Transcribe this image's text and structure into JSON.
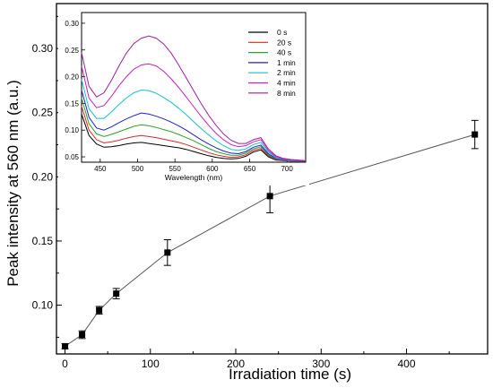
{
  "chart_data": [
    {
      "type": "scatter",
      "connected": true,
      "xlabel": "Irradiation time (s)",
      "ylabel": "Peak intensity at 560 nm (a.u.)",
      "xlim": [
        -10,
        495
      ],
      "ylim": [
        0.062,
        0.335
      ],
      "x_ticks": [
        0,
        100,
        200,
        300,
        400
      ],
      "y_ticks": [
        0.1,
        0.15,
        0.2,
        0.25,
        0.3
      ],
      "x_tick_labels": [
        "0",
        "100",
        "200",
        "300",
        "400"
      ],
      "y_tick_labels": [
        "0.10",
        "0.15",
        "0.20",
        "0.25",
        "0.30"
      ],
      "series": [
        {
          "x": [
            0,
            20,
            40,
            60,
            120,
            240,
            480
          ],
          "y": [
            0.068,
            0.077,
            0.096,
            0.109,
            0.141,
            0.185,
            0.233
          ],
          "error": [
            0.002,
            0.003,
            0.003,
            0.004,
            0.01,
            0.013,
            0.011
          ]
        }
      ],
      "marker": "square",
      "color": "#000000"
    },
    {
      "type": "line",
      "inset": true,
      "xlabel": "Wavelength (nm)",
      "xlim": [
        425,
        725
      ],
      "ylim": [
        0.04,
        0.32
      ],
      "x_ticks": [
        450,
        500,
        550,
        600,
        650,
        700
      ],
      "y_ticks": [
        0.05,
        0.1,
        0.15,
        0.2,
        0.25,
        0.3
      ],
      "x_tick_labels": [
        "450",
        "500",
        "550",
        "600",
        "650",
        "700"
      ],
      "y_tick_labels": [
        "0.05",
        "0.10",
        "0.15",
        "0.20",
        "0.25",
        "0.30"
      ],
      "legend_position": "top-right",
      "x": [
        425,
        435,
        445,
        455,
        465,
        475,
        485,
        495,
        505,
        515,
        525,
        535,
        545,
        555,
        565,
        575,
        585,
        595,
        605,
        615,
        625,
        635,
        645,
        655,
        665,
        675,
        685,
        695,
        705,
        715,
        725
      ],
      "series": [
        {
          "name": "0 s",
          "color": "#000000",
          "values": [
            0.13,
            0.09,
            0.074,
            0.068,
            0.069,
            0.071,
            0.074,
            0.076,
            0.077,
            0.075,
            0.073,
            0.071,
            0.069,
            0.067,
            0.064,
            0.06,
            0.056,
            0.052,
            0.049,
            0.047,
            0.046,
            0.047,
            0.051,
            0.059,
            0.063,
            0.05,
            0.044,
            0.043,
            0.042,
            0.042,
            0.042
          ]
        },
        {
          "name": "20 s",
          "color": "#d62728",
          "values": [
            0.145,
            0.1,
            0.082,
            0.076,
            0.078,
            0.081,
            0.085,
            0.088,
            0.09,
            0.088,
            0.086,
            0.083,
            0.08,
            0.077,
            0.073,
            0.068,
            0.063,
            0.058,
            0.054,
            0.051,
            0.049,
            0.05,
            0.054,
            0.062,
            0.066,
            0.052,
            0.045,
            0.043,
            0.042,
            0.042,
            0.042
          ]
        },
        {
          "name": "40 s",
          "color": "#2ca02c",
          "values": [
            0.16,
            0.112,
            0.093,
            0.088,
            0.092,
            0.097,
            0.102,
            0.107,
            0.11,
            0.108,
            0.105,
            0.101,
            0.097,
            0.092,
            0.086,
            0.08,
            0.073,
            0.066,
            0.06,
            0.056,
            0.053,
            0.053,
            0.057,
            0.065,
            0.069,
            0.054,
            0.046,
            0.044,
            0.043,
            0.042,
            0.042
          ]
        },
        {
          "name": "1 min",
          "color": "#2020c8",
          "values": [
            0.175,
            0.124,
            0.104,
            0.1,
            0.106,
            0.114,
            0.121,
            0.127,
            0.132,
            0.13,
            0.126,
            0.121,
            0.115,
            0.108,
            0.1,
            0.091,
            0.082,
            0.074,
            0.067,
            0.061,
            0.057,
            0.056,
            0.06,
            0.068,
            0.072,
            0.056,
            0.047,
            0.044,
            0.043,
            0.042,
            0.042
          ]
        },
        {
          "name": "2 min",
          "color": "#17becf",
          "values": [
            0.195,
            0.14,
            0.122,
            0.122,
            0.134,
            0.148,
            0.16,
            0.17,
            0.175,
            0.174,
            0.169,
            0.161,
            0.152,
            0.141,
            0.129,
            0.116,
            0.103,
            0.091,
            0.08,
            0.071,
            0.064,
            0.062,
            0.065,
            0.073,
            0.077,
            0.059,
            0.048,
            0.045,
            0.043,
            0.042,
            0.042
          ]
        },
        {
          "name": "4 min",
          "color": "#c020c0",
          "values": [
            0.22,
            0.16,
            0.142,
            0.146,
            0.163,
            0.183,
            0.2,
            0.214,
            0.222,
            0.224,
            0.22,
            0.21,
            0.196,
            0.18,
            0.162,
            0.144,
            0.126,
            0.109,
            0.094,
            0.082,
            0.073,
            0.069,
            0.071,
            0.078,
            0.082,
            0.062,
            0.05,
            0.046,
            0.044,
            0.043,
            0.042
          ]
        },
        {
          "name": "8 min",
          "color": "#9b1fa0",
          "values": [
            0.245,
            0.182,
            0.162,
            0.17,
            0.193,
            0.22,
            0.244,
            0.262,
            0.272,
            0.276,
            0.272,
            0.261,
            0.244,
            0.222,
            0.198,
            0.174,
            0.15,
            0.128,
            0.109,
            0.093,
            0.081,
            0.075,
            0.075,
            0.082,
            0.086,
            0.065,
            0.052,
            0.047,
            0.045,
            0.044,
            0.043
          ]
        }
      ]
    }
  ]
}
